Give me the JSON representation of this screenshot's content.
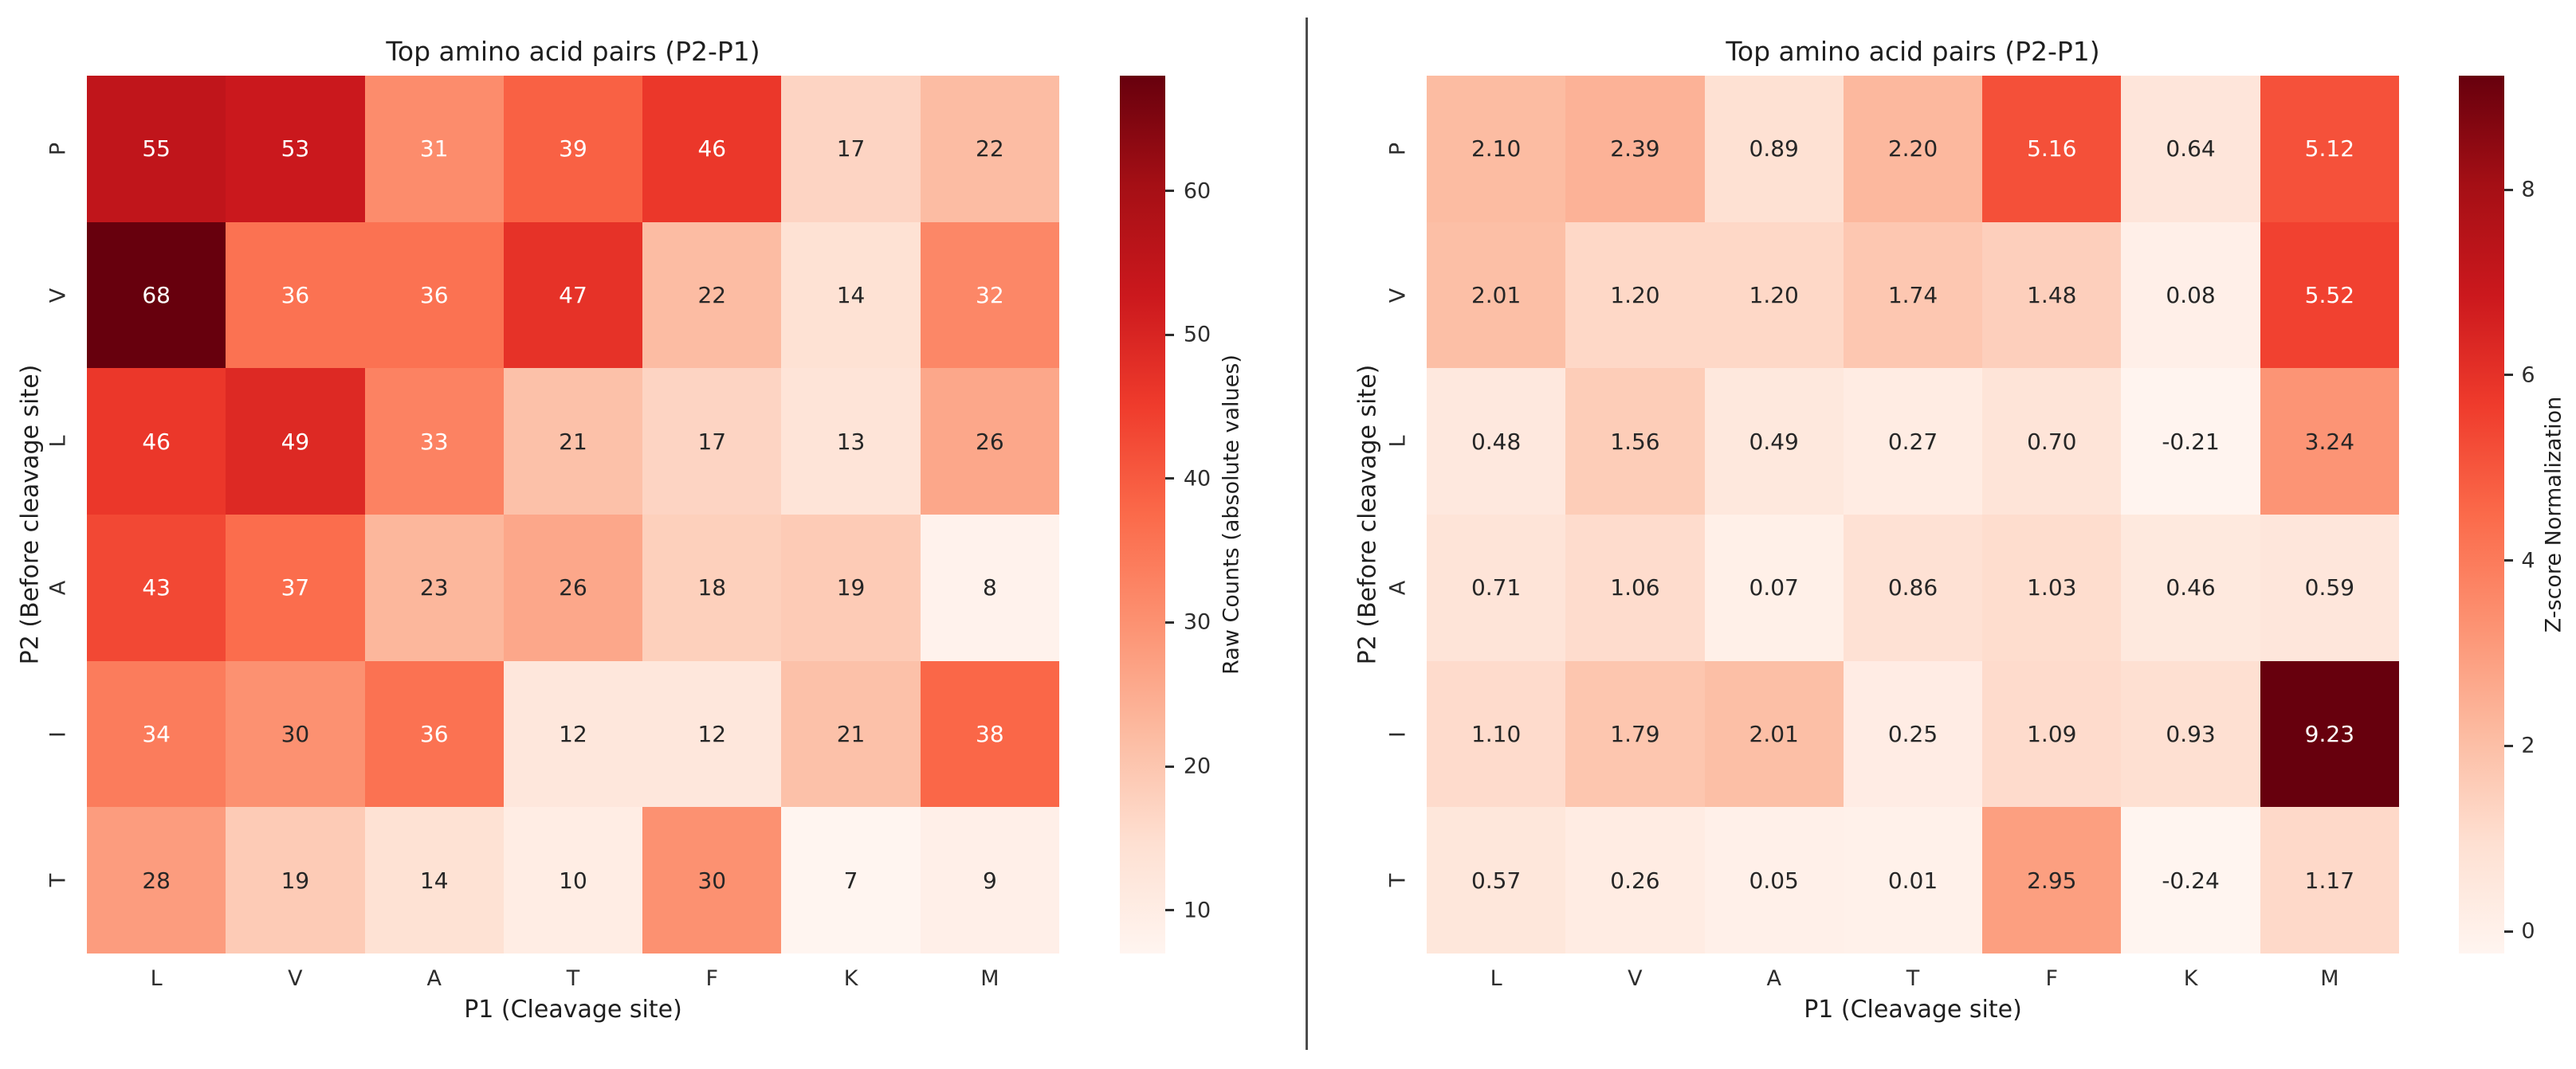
{
  "colors": {
    "background": "#ffffff",
    "divider": "#4d4d4d",
    "annotation_dark": "#262626",
    "annotation_light": "#ffffff",
    "reds_colormap_anchors": [
      "#fff5f0",
      "#fee0d2",
      "#fcbba1",
      "#fc9272",
      "#fb6a4a",
      "#ef3b2c",
      "#cb181d",
      "#a50f15",
      "#67000d"
    ]
  },
  "chart_data": [
    {
      "type": "heatmap",
      "title": "Top amino acid pairs (P2-P1)",
      "xlabel": "P1 (Cleavage site)",
      "ylabel": "P2 (Before cleavage site)",
      "x_categories": [
        "L",
        "V",
        "A",
        "T",
        "F",
        "K",
        "M"
      ],
      "y_categories": [
        "P",
        "V",
        "L",
        "A",
        "I",
        "T"
      ],
      "values": [
        [
          55,
          53,
          31,
          39,
          46,
          17,
          22
        ],
        [
          68,
          36,
          36,
          47,
          22,
          14,
          32
        ],
        [
          46,
          49,
          33,
          21,
          17,
          13,
          26
        ],
        [
          43,
          37,
          23,
          26,
          18,
          19,
          8
        ],
        [
          34,
          30,
          36,
          12,
          12,
          21,
          38
        ],
        [
          28,
          19,
          14,
          10,
          30,
          7,
          9
        ]
      ],
      "value_format_decimals": 0,
      "colormap": "Reds",
      "grid": false,
      "colorbar": {
        "label": "Raw Counts (absolute values)",
        "ticks": [
          10,
          20,
          30,
          40,
          50,
          60
        ],
        "vmin": 7,
        "vmax": 68,
        "position": "right"
      }
    },
    {
      "type": "heatmap",
      "title": "Top amino acid pairs (P2-P1)",
      "xlabel": "P1 (Cleavage site)",
      "ylabel": "P2 (Before cleavage site)",
      "x_categories": [
        "L",
        "V",
        "A",
        "T",
        "F",
        "K",
        "M"
      ],
      "y_categories": [
        "P",
        "V",
        "L",
        "A",
        "I",
        "T"
      ],
      "values": [
        [
          2.1,
          2.39,
          0.89,
          2.2,
          5.16,
          0.64,
          5.12
        ],
        [
          2.01,
          1.2,
          1.2,
          1.74,
          1.48,
          0.08,
          5.52
        ],
        [
          0.48,
          1.56,
          0.49,
          0.27,
          0.7,
          -0.21,
          3.24
        ],
        [
          0.71,
          1.06,
          0.07,
          0.86,
          1.03,
          0.46,
          0.59
        ],
        [
          1.1,
          1.79,
          2.01,
          0.25,
          1.09,
          0.93,
          9.23
        ],
        [
          0.57,
          0.26,
          0.05,
          0.01,
          2.95,
          -0.24,
          1.17
        ]
      ],
      "value_format_decimals": 2,
      "colormap": "Reds",
      "grid": false,
      "colorbar": {
        "label": "Z-score Normalization",
        "ticks": [
          0,
          2,
          4,
          6,
          8
        ],
        "vmin": -0.24,
        "vmax": 9.23,
        "position": "right"
      }
    }
  ]
}
